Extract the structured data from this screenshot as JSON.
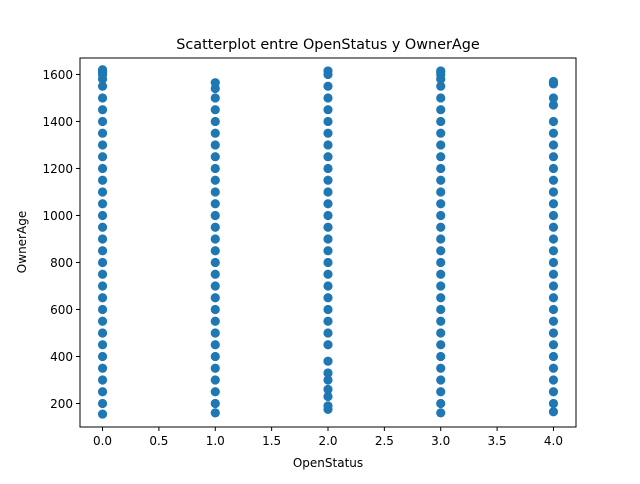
{
  "chart_data": {
    "type": "scatter",
    "title": "Scatterplot entre OpenStatus y OwnerAge",
    "xlabel": "OpenStatus",
    "ylabel": "OwnerAge",
    "xlim": [
      -0.2,
      4.2
    ],
    "ylim": [
      100,
      1670
    ],
    "xticks": [
      0.0,
      0.5,
      1.0,
      1.5,
      2.0,
      2.5,
      3.0,
      3.5,
      4.0
    ],
    "xtick_labels": [
      "0.0",
      "0.5",
      "1.0",
      "1.5",
      "2.0",
      "2.5",
      "3.0",
      "3.5",
      "4.0"
    ],
    "yticks": [
      200,
      400,
      600,
      800,
      1000,
      1200,
      1400,
      1600
    ],
    "ytick_labels": [
      "200",
      "400",
      "600",
      "800",
      "1000",
      "1200",
      "1400",
      "1600"
    ],
    "grid": false,
    "legend": "none",
    "marker_color": "#1f77b4",
    "series": [
      {
        "x": [
          0,
          0,
          0,
          0,
          0,
          0,
          0,
          0,
          0,
          0,
          0,
          0,
          0,
          0,
          0,
          0,
          0,
          0,
          0,
          0,
          0,
          0,
          0,
          0,
          0,
          0,
          0,
          0,
          0,
          0,
          0,
          0,
          0,
          0,
          1,
          1,
          1,
          1,
          1,
          1,
          1,
          1,
          1,
          1,
          1,
          1,
          1,
          1,
          1,
          1,
          1,
          1,
          1,
          1,
          1,
          1,
          1,
          1,
          1,
          1,
          1,
          1,
          1,
          1,
          2,
          2,
          2,
          2,
          2,
          2,
          2,
          2,
          2,
          2,
          2,
          2,
          2,
          2,
          2,
          2,
          2,
          2,
          2,
          2,
          2,
          2,
          2,
          2,
          2,
          2,
          2,
          2,
          2,
          2,
          2,
          2,
          3,
          3,
          3,
          3,
          3,
          3,
          3,
          3,
          3,
          3,
          3,
          3,
          3,
          3,
          3,
          3,
          3,
          3,
          3,
          3,
          3,
          3,
          3,
          3,
          3,
          3,
          3,
          3,
          3,
          3,
          3,
          3,
          3,
          4,
          4,
          4,
          4,
          4,
          4,
          4,
          4,
          4,
          4,
          4,
          4,
          4,
          4,
          4,
          4,
          4,
          4,
          4,
          4,
          4,
          4,
          4,
          4,
          4,
          4,
          4,
          4,
          4,
          4,
          4
        ],
        "y": [
          155,
          200,
          250,
          300,
          350,
          400,
          450,
          500,
          550,
          600,
          650,
          700,
          750,
          800,
          850,
          900,
          950,
          1000,
          1050,
          1100,
          1150,
          1200,
          1250,
          1300,
          1350,
          1400,
          1450,
          1500,
          1550,
          1580,
          1600,
          1610,
          1615,
          1620,
          160,
          200,
          250,
          300,
          350,
          400,
          450,
          500,
          550,
          600,
          650,
          700,
          750,
          800,
          850,
          900,
          950,
          1000,
          1050,
          1100,
          1150,
          1200,
          1250,
          1300,
          1350,
          1400,
          1450,
          1500,
          1540,
          1565,
          175,
          190,
          230,
          260,
          300,
          330,
          380,
          450,
          500,
          550,
          600,
          650,
          700,
          750,
          800,
          850,
          900,
          950,
          1000,
          1050,
          1100,
          1150,
          1200,
          1250,
          1300,
          1350,
          1400,
          1450,
          1500,
          1550,
          1600,
          1615,
          160,
          200,
          250,
          300,
          350,
          400,
          450,
          500,
          550,
          600,
          650,
          700,
          750,
          800,
          850,
          900,
          950,
          1000,
          1050,
          1100,
          1150,
          1200,
          1250,
          1300,
          1350,
          1400,
          1450,
          1500,
          1550,
          1580,
          1600,
          1610,
          1615,
          165,
          200,
          250,
          300,
          350,
          400,
          450,
          500,
          550,
          600,
          650,
          700,
          750,
          800,
          850,
          900,
          950,
          1000,
          1050,
          1100,
          1150,
          1200,
          1250,
          1300,
          1350,
          1400,
          1470,
          1500,
          1560,
          1565,
          1570
        ]
      }
    ]
  }
}
